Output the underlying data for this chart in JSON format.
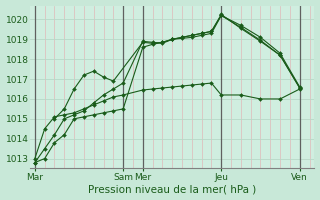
{
  "background_color": "#c8e8d8",
  "plot_bg_color": "#d0eee0",
  "grid_color_v_minor": "#e0b8b8",
  "grid_color_h": "#b8d8c8",
  "line_color": "#1a5c1a",
  "ylim": [
    1012.5,
    1020.7
  ],
  "ylabel_fontsize": 6.5,
  "xlabel": "Pression niveau de la mer( hPa )",
  "xlabel_fontsize": 7.5,
  "yticks": [
    1013,
    1014,
    1015,
    1016,
    1017,
    1018,
    1019,
    1020
  ],
  "n_cols": 28,
  "day_boundary_positions": [
    0,
    9,
    11,
    19,
    27
  ],
  "major_xtick_positions": [
    0,
    9,
    11,
    19,
    27
  ],
  "major_xtick_labels": [
    "Mar",
    "Sam",
    "Mer",
    "Jeu",
    "Ven"
  ],
  "series": [
    {
      "x": [
        0,
        1,
        2,
        3,
        4,
        5,
        6,
        7,
        8,
        9,
        11,
        12,
        13,
        14,
        15,
        16,
        17,
        18,
        19,
        21,
        23,
        25,
        27
      ],
      "y": [
        1012.8,
        1013.0,
        1013.8,
        1014.2,
        1015.0,
        1015.1,
        1015.2,
        1015.3,
        1015.4,
        1015.5,
        1018.6,
        1018.75,
        1018.85,
        1019.0,
        1019.1,
        1019.2,
        1019.3,
        1019.4,
        1020.2,
        1019.7,
        1019.1,
        1018.3,
        1016.6
      ]
    },
    {
      "x": [
        0,
        1,
        2,
        3,
        4,
        5,
        6,
        7,
        8,
        9,
        11,
        12,
        13,
        14,
        15,
        16,
        17,
        18,
        19,
        21,
        23,
        25,
        27
      ],
      "y": [
        1012.8,
        1013.5,
        1014.2,
        1015.0,
        1015.2,
        1015.4,
        1015.8,
        1016.2,
        1016.5,
        1016.8,
        1018.9,
        1018.85,
        1018.8,
        1019.0,
        1019.1,
        1019.2,
        1019.3,
        1019.4,
        1020.25,
        1019.55,
        1018.9,
        1018.2,
        1016.55
      ]
    },
    {
      "x": [
        2,
        3,
        4,
        5,
        6,
        7,
        8,
        11,
        12,
        13,
        14,
        15,
        16,
        17,
        18,
        19,
        21,
        23,
        25,
        27
      ],
      "y": [
        1015.0,
        1015.5,
        1016.5,
        1017.2,
        1017.4,
        1017.1,
        1016.9,
        1018.85,
        1018.8,
        1018.85,
        1019.0,
        1019.05,
        1019.1,
        1019.2,
        1019.3,
        1020.2,
        1019.6,
        1018.95,
        1018.2,
        1016.55
      ]
    },
    {
      "x": [
        0,
        1,
        2,
        3,
        4,
        5,
        6,
        7,
        8,
        9,
        11,
        12,
        13,
        14,
        15,
        16,
        17,
        18,
        19,
        21,
        23,
        25,
        27
      ],
      "y": [
        1013.0,
        1014.5,
        1015.1,
        1015.2,
        1015.3,
        1015.5,
        1015.7,
        1015.9,
        1016.1,
        1016.2,
        1016.45,
        1016.5,
        1016.55,
        1016.6,
        1016.65,
        1016.7,
        1016.75,
        1016.8,
        1016.2,
        1016.2,
        1016.0,
        1016.0,
        1016.5
      ]
    }
  ]
}
